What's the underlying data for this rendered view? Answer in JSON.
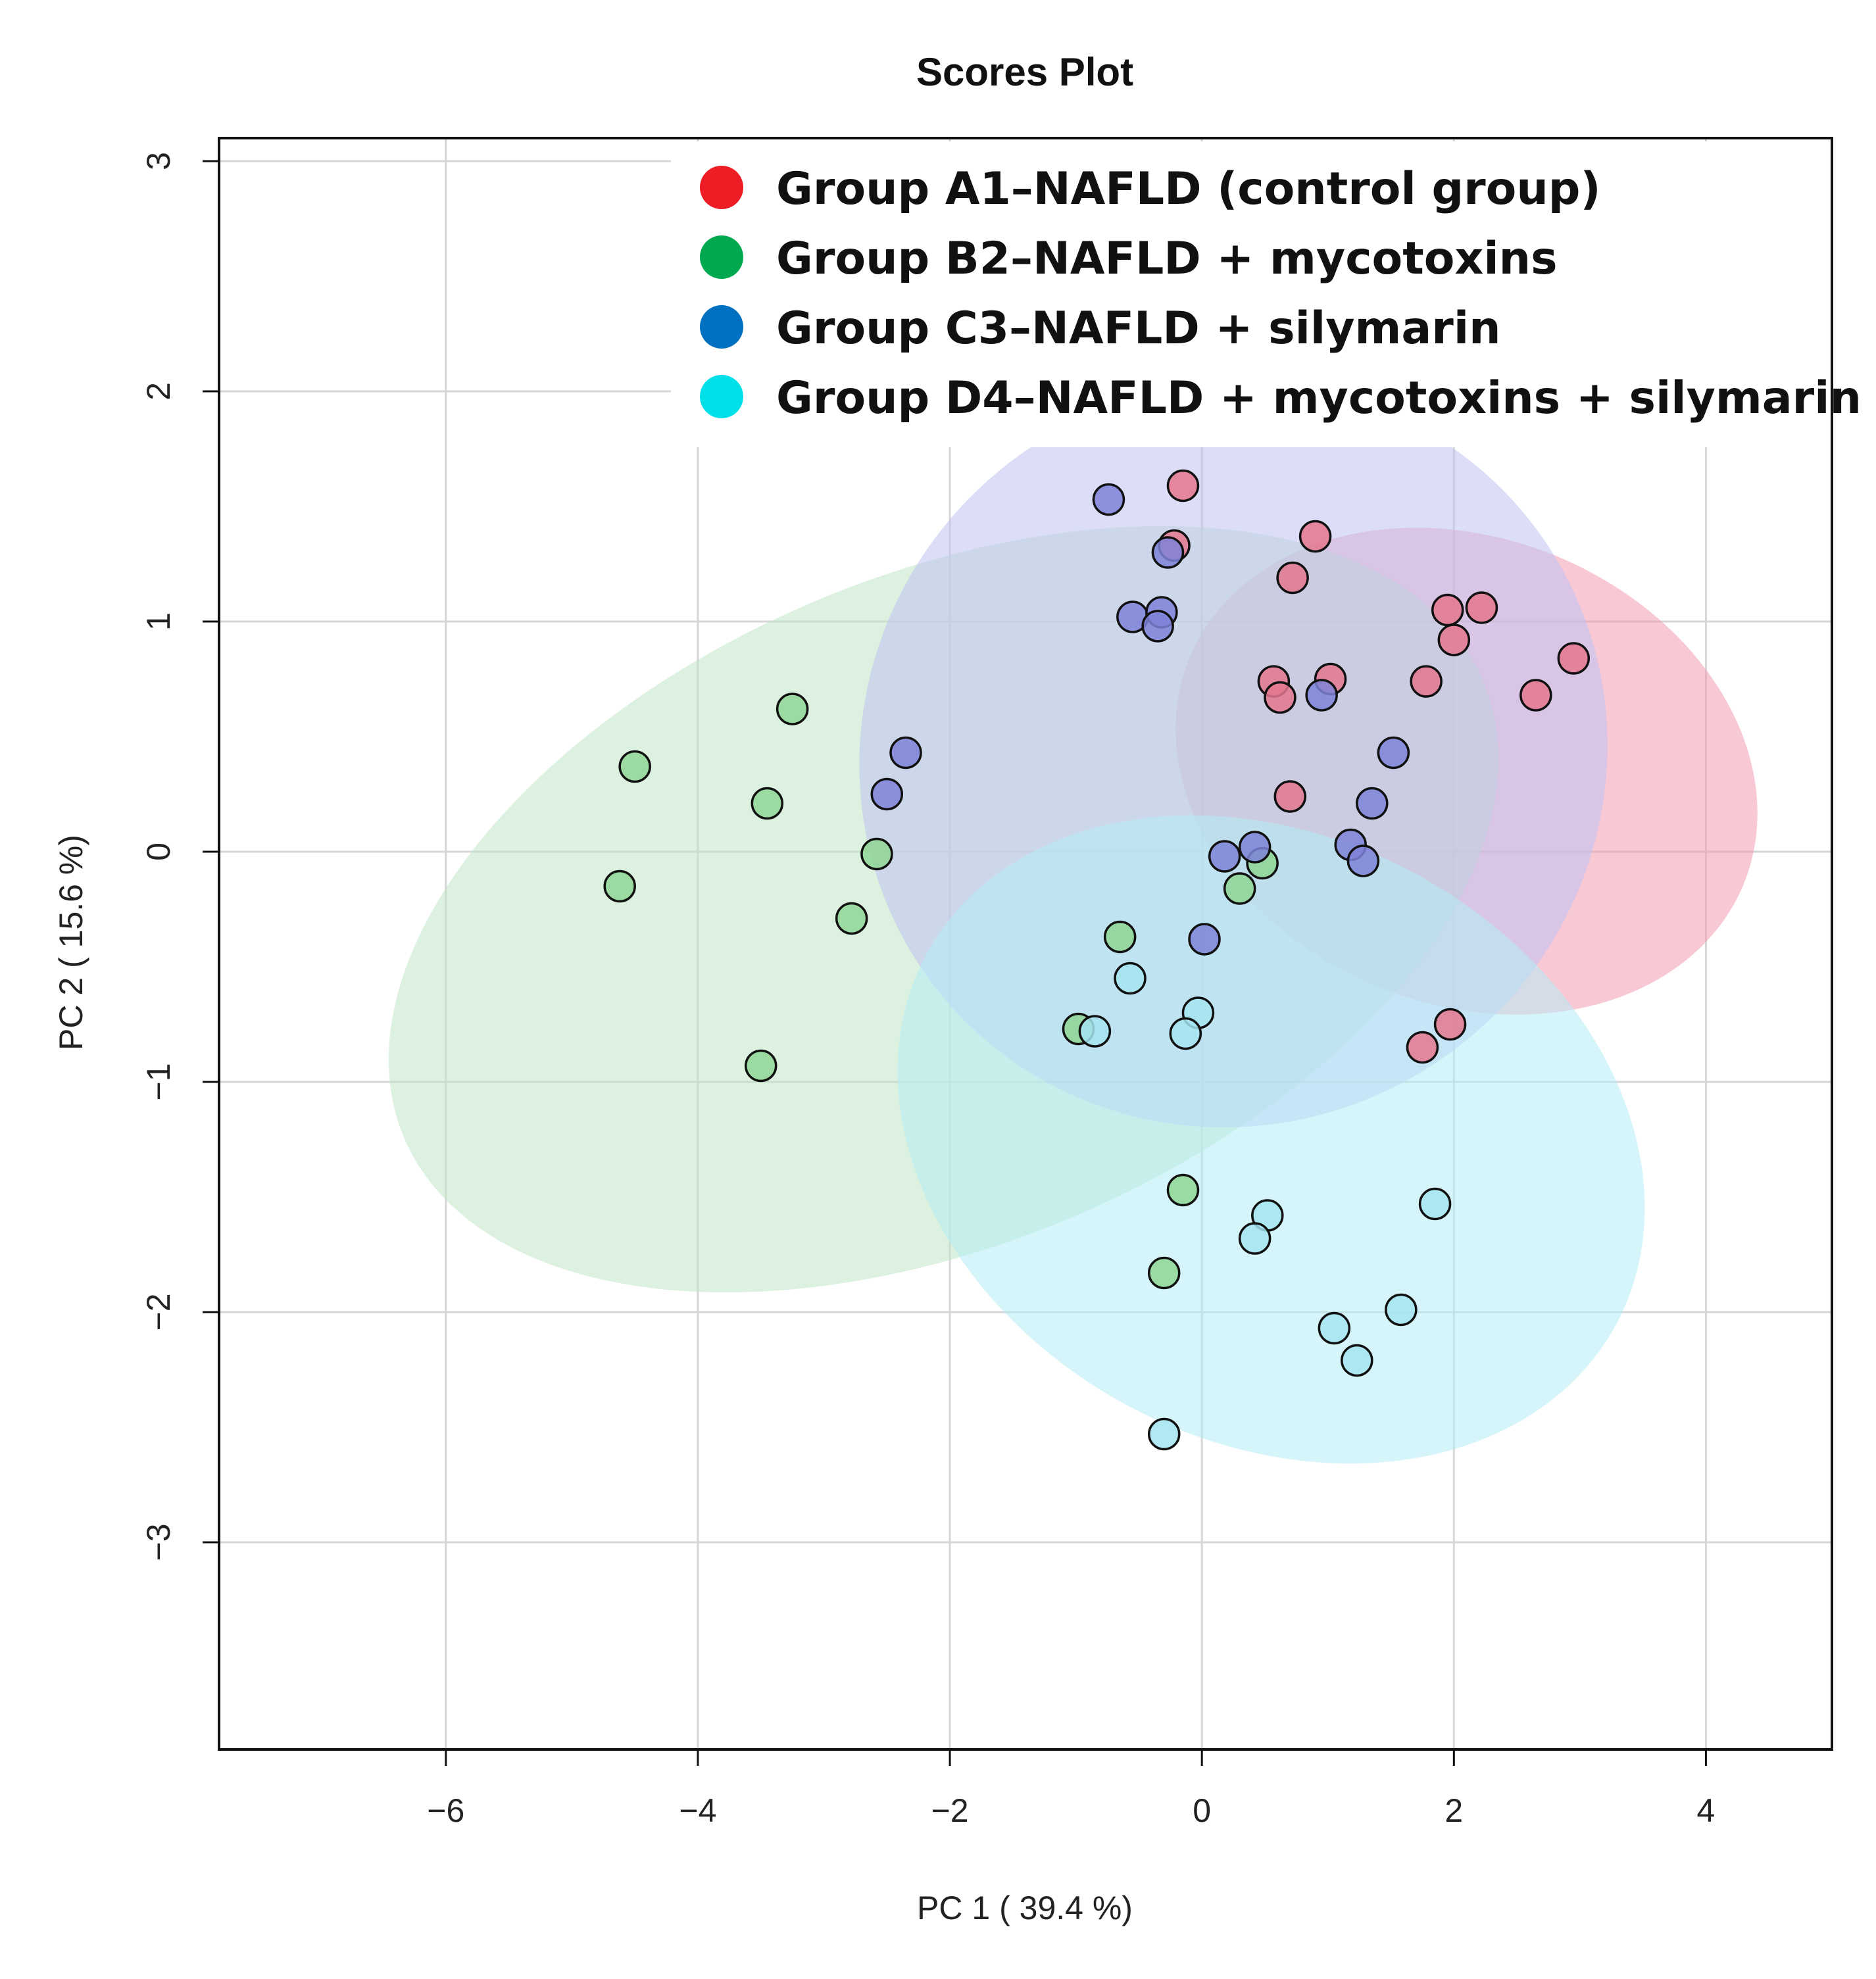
{
  "chart_data": {
    "type": "scatter",
    "title": "Scores Plot",
    "xlabel": "PC 1 ( 39.4 %)",
    "ylabel": "PC 2 ( 15.6 %)",
    "xlim": [
      -7.8,
      5.0
    ],
    "ylim": [
      -3.9,
      3.1
    ],
    "x_ticks": [
      -6,
      -4,
      -2,
      0,
      2,
      4
    ],
    "y_ticks": [
      3,
      2,
      1,
      0,
      -1,
      -2,
      -3
    ],
    "grid": true,
    "legend_position": "top-right",
    "series": [
      {
        "name": "Group A1–NAFLD (control group)",
        "legend_color": "#ee1c24",
        "point_fill": "#e4778e",
        "ellipse_fill": "#f29bb0",
        "ellipse": {
          "cx": 2.1,
          "cy": 0.35,
          "rx": 1.85,
          "ry": 1.3,
          "angle": -68
        },
        "points": [
          [
            -0.15,
            1.59
          ],
          [
            -0.22,
            1.33
          ],
          [
            0.9,
            1.37
          ],
          [
            0.72,
            1.19
          ],
          [
            1.95,
            1.05
          ],
          [
            2.22,
            1.06
          ],
          [
            2.0,
            0.92
          ],
          [
            2.95,
            0.84
          ],
          [
            1.78,
            0.74
          ],
          [
            2.65,
            0.68
          ],
          [
            0.57,
            0.74
          ],
          [
            1.02,
            0.75
          ],
          [
            0.62,
            0.67
          ],
          [
            0.7,
            0.24
          ],
          [
            1.75,
            -0.85
          ],
          [
            1.97,
            -0.75
          ]
        ]
      },
      {
        "name": "Group B2–NAFLD + mycotoxins",
        "legend_color": "#00a94f",
        "point_fill": "#8fd694",
        "ellipse_fill": "#bfe6c6",
        "ellipse": {
          "cx": -2.05,
          "cy": -0.25,
          "rx": 4.65,
          "ry": 1.45,
          "angle": -23
        },
        "points": [
          [
            -3.25,
            0.62
          ],
          [
            -4.5,
            0.37
          ],
          [
            -3.45,
            0.21
          ],
          [
            -2.58,
            -0.01
          ],
          [
            -4.62,
            -0.15
          ],
          [
            -2.78,
            -0.29
          ],
          [
            -3.5,
            -0.93
          ],
          [
            -0.65,
            -0.37
          ],
          [
            -0.98,
            -0.77
          ],
          [
            0.48,
            -0.05
          ],
          [
            0.3,
            -0.16
          ],
          [
            -0.15,
            -1.47
          ],
          [
            -0.3,
            -1.83
          ]
        ]
      },
      {
        "name": "Group C3–NAFLD + silymarin",
        "legend_color": "#0070c0",
        "point_fill": "#7e82d8",
        "ellipse_fill": "#bfc3f2",
        "ellipse": {
          "cx": 0.25,
          "cy": 0.42,
          "rx": 3.0,
          "ry": 1.6,
          "angle": -40
        },
        "points": [
          [
            -0.74,
            1.53
          ],
          [
            -0.27,
            1.3
          ],
          [
            -0.55,
            1.02
          ],
          [
            -0.32,
            1.04
          ],
          [
            -0.35,
            0.98
          ],
          [
            0.95,
            0.68
          ],
          [
            1.52,
            0.43
          ],
          [
            -2.35,
            0.43
          ],
          [
            -2.5,
            0.25
          ],
          [
            1.35,
            0.21
          ],
          [
            1.18,
            0.03
          ],
          [
            1.28,
            -0.04
          ],
          [
            0.42,
            0.02
          ],
          [
            0.18,
            -0.02
          ],
          [
            0.02,
            -0.38
          ]
        ]
      },
      {
        "name": "Group D4–NAFLD + mycotoxins + silymarin",
        "legend_color": "#00e0e8",
        "point_fill": "#a4e4f0",
        "ellipse_fill": "#b4ecf6",
        "ellipse": {
          "cx": 0.55,
          "cy": -1.25,
          "rx": 2.4,
          "ry": 1.7,
          "angle": -62
        },
        "points": [
          [
            -0.57,
            -0.55
          ],
          [
            -0.85,
            -0.78
          ],
          [
            -0.03,
            -0.7
          ],
          [
            -0.13,
            -0.79
          ],
          [
            0.52,
            -1.58
          ],
          [
            0.42,
            -1.68
          ],
          [
            1.85,
            -1.53
          ],
          [
            1.58,
            -1.99
          ],
          [
            1.05,
            -2.07
          ],
          [
            1.23,
            -2.21
          ],
          [
            -0.3,
            -2.53
          ]
        ]
      }
    ]
  }
}
